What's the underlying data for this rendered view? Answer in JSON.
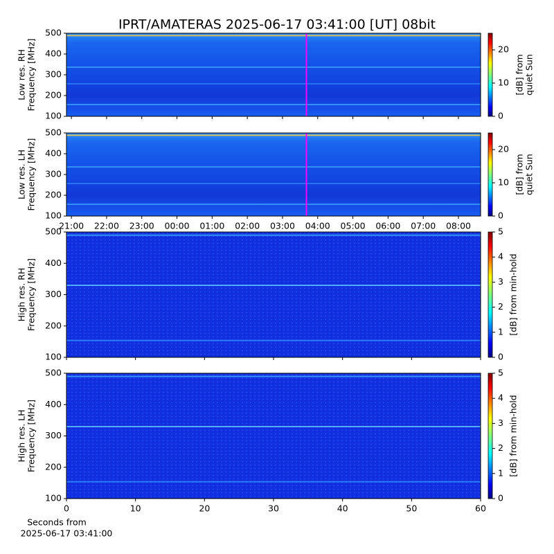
{
  "chart_data": [
    {
      "type": "heatmap",
      "title": "IPRT/AMATERAS 2025-06-17 03:41:00 [UT]   08bit",
      "ylabel": [
        "Low res. RH",
        "Frequency [MHz]"
      ],
      "ylim": [
        100,
        500
      ],
      "yticks": [
        100,
        200,
        300,
        400,
        500
      ],
      "xlim": [
        20.86,
        32.63
      ],
      "xticks": [
        {
          "value": 21,
          "label": "21:00"
        },
        {
          "value": 22,
          "label": "22:00"
        },
        {
          "value": 23,
          "label": "23:00"
        },
        {
          "value": 24,
          "label": "00:00"
        },
        {
          "value": 25,
          "label": "01:00"
        },
        {
          "value": 26,
          "label": "02:00"
        },
        {
          "value": 27,
          "label": "03:00"
        },
        {
          "value": 28,
          "label": "04:00"
        },
        {
          "value": 29,
          "label": "05:00"
        },
        {
          "value": 30,
          "label": "06:00"
        },
        {
          "value": 31,
          "label": "07:00"
        },
        {
          "value": 32,
          "label": "08:00"
        }
      ],
      "xticklabels": false,
      "marker": {
        "x": 27.68,
        "color": "#ff00ff"
      },
      "colormap": "jet",
      "clim": [
        0,
        25
      ],
      "cticks": [
        0,
        10,
        20
      ],
      "clabel": [
        "[dB] from",
        "quiet Sun"
      ]
    },
    {
      "type": "heatmap",
      "ylabel": [
        "Low res. LH",
        "Frequency [MHz]"
      ],
      "ylim": [
        100,
        500
      ],
      "yticks": [
        100,
        200,
        300,
        400,
        500
      ],
      "xlim": [
        20.86,
        32.63
      ],
      "xticks": [
        {
          "value": 21,
          "label": "21:00"
        },
        {
          "value": 22,
          "label": "22:00"
        },
        {
          "value": 23,
          "label": "23:00"
        },
        {
          "value": 24,
          "label": "00:00"
        },
        {
          "value": 25,
          "label": "01:00"
        },
        {
          "value": 26,
          "label": "02:00"
        },
        {
          "value": 27,
          "label": "03:00"
        },
        {
          "value": 28,
          "label": "04:00"
        },
        {
          "value": 29,
          "label": "05:00"
        },
        {
          "value": 30,
          "label": "06:00"
        },
        {
          "value": 31,
          "label": "07:00"
        },
        {
          "value": 32,
          "label": "08:00"
        }
      ],
      "xticklabels": true,
      "marker": {
        "x": 27.68,
        "color": "#ff00ff"
      },
      "colormap": "jet",
      "clim": [
        0,
        25
      ],
      "cticks": [
        0,
        10,
        20
      ],
      "clabel": [
        "[dB] from",
        "quiet Sun"
      ]
    },
    {
      "type": "heatmap",
      "ylabel": [
        "High res. RH",
        "Frequency [MHz]"
      ],
      "ylim": [
        100,
        500
      ],
      "yticks": [
        100,
        200,
        300,
        400,
        500
      ],
      "xlim": [
        0,
        60
      ],
      "xticks": [
        0,
        10,
        20,
        30,
        40,
        50,
        60
      ],
      "xticklabels": false,
      "colormap": "jet",
      "clim": [
        0,
        5
      ],
      "cticks": [
        0,
        1,
        2,
        3,
        4,
        5
      ],
      "clabel": [
        "[dB] from min-hold"
      ]
    },
    {
      "type": "heatmap",
      "ylabel": [
        "High res. LH",
        "Frequency [MHz]"
      ],
      "ylim": [
        100,
        500
      ],
      "yticks": [
        100,
        200,
        300,
        400,
        500
      ],
      "xlim": [
        0,
        60
      ],
      "xticks": [
        0,
        10,
        20,
        30,
        40,
        50,
        60
      ],
      "xticklabels": true,
      "xlabel": [
        "Seconds from",
        "2025-06-17 03:41:00"
      ],
      "colormap": "jet",
      "clim": [
        0,
        5
      ],
      "cticks": [
        0,
        1,
        2,
        3,
        4,
        5
      ],
      "clabel": [
        "[dB] from min-hold"
      ]
    }
  ]
}
